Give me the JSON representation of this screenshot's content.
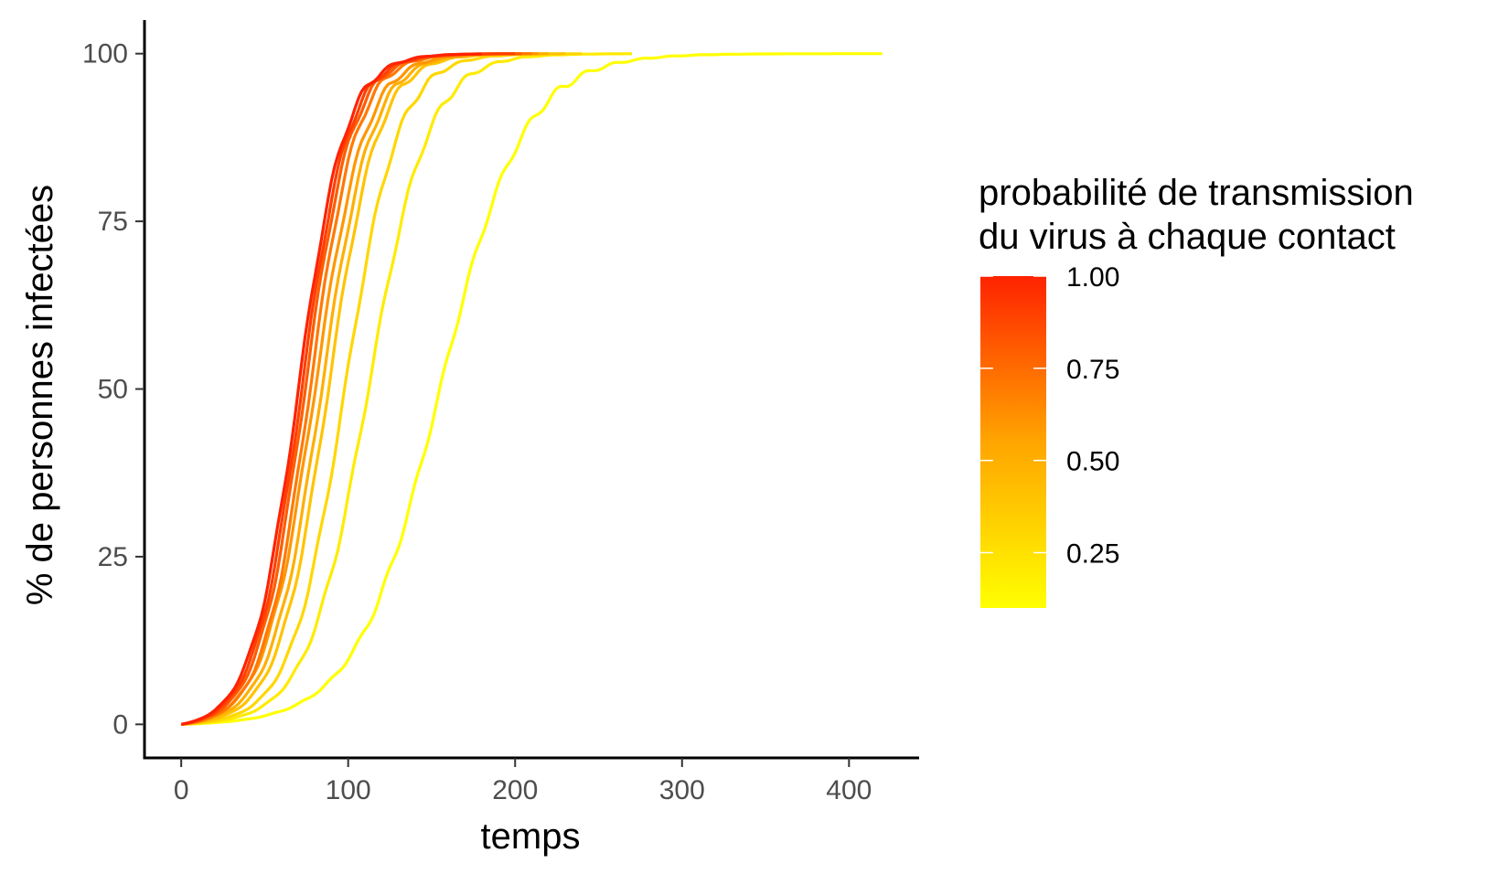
{
  "chart_data": {
    "type": "line",
    "xlabel": "temps",
    "ylabel": "% de personnes infectées",
    "xlim": [
      -22,
      442
    ],
    "ylim": [
      -5,
      105
    ],
    "xticks": [
      0,
      100,
      200,
      300,
      400
    ],
    "yticks": [
      0,
      25,
      50,
      75,
      100
    ],
    "grid": false,
    "legend": {
      "title_lines": [
        "probabilité de transmission",
        "du virus à chaque contact"
      ],
      "placement": "right",
      "colorbar": {
        "min": 0.1,
        "max": 1.0,
        "low_color": "#FFFF00",
        "high_color": "#FF2200",
        "ticks": [
          {
            "value": 1.0,
            "label": "1.00"
          },
          {
            "value": 0.75,
            "label": "0.75"
          },
          {
            "value": 0.5,
            "label": "0.50"
          },
          {
            "value": 0.25,
            "label": "0.25"
          }
        ]
      }
    },
    "series": [
      {
        "p": 0.1,
        "midpoint": 155,
        "width": 25,
        "end": 420
      },
      {
        "p": 0.2,
        "midpoint": 112,
        "width": 18,
        "end": 270
      },
      {
        "p": 0.3,
        "midpoint": 98,
        "width": 16,
        "end": 240
      },
      {
        "p": 0.4,
        "midpoint": 88,
        "width": 15,
        "end": 230
      },
      {
        "p": 0.5,
        "midpoint": 84,
        "width": 15,
        "end": 220
      },
      {
        "p": 0.6,
        "midpoint": 80,
        "width": 15,
        "end": 215
      },
      {
        "p": 0.7,
        "midpoint": 77,
        "width": 14,
        "end": 210
      },
      {
        "p": 0.8,
        "midpoint": 74,
        "width": 14,
        "end": 205
      },
      {
        "p": 0.9,
        "midpoint": 72,
        "width": 14,
        "end": 200
      },
      {
        "p": 1.0,
        "midpoint": 70,
        "width": 14,
        "end": 180
      }
    ]
  }
}
